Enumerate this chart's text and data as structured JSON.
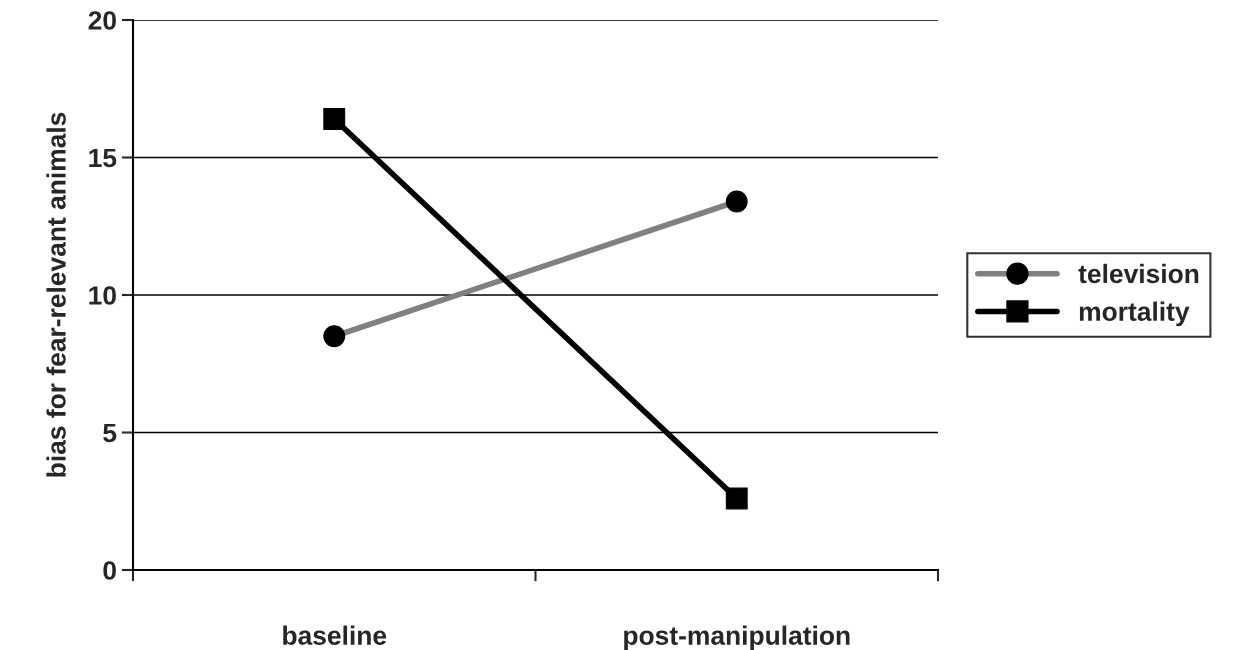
{
  "chart_data": {
    "type": "line",
    "ylabel": "bias for fear-relevant animals",
    "categories": [
      "baseline",
      "post-manipulation"
    ],
    "series": [
      {
        "name": "television",
        "color": "#808080",
        "values": [
          8.5,
          13.4
        ],
        "marker": "circle"
      },
      {
        "name": "mortality",
        "color": "#000000",
        "values": [
          16.4,
          2.6
        ],
        "marker": "square"
      }
    ],
    "ylim": [
      0,
      20
    ],
    "yticks": [
      0,
      5,
      10,
      15,
      20
    ],
    "grid": "y",
    "legend": "right",
    "line_style": "solid"
  }
}
